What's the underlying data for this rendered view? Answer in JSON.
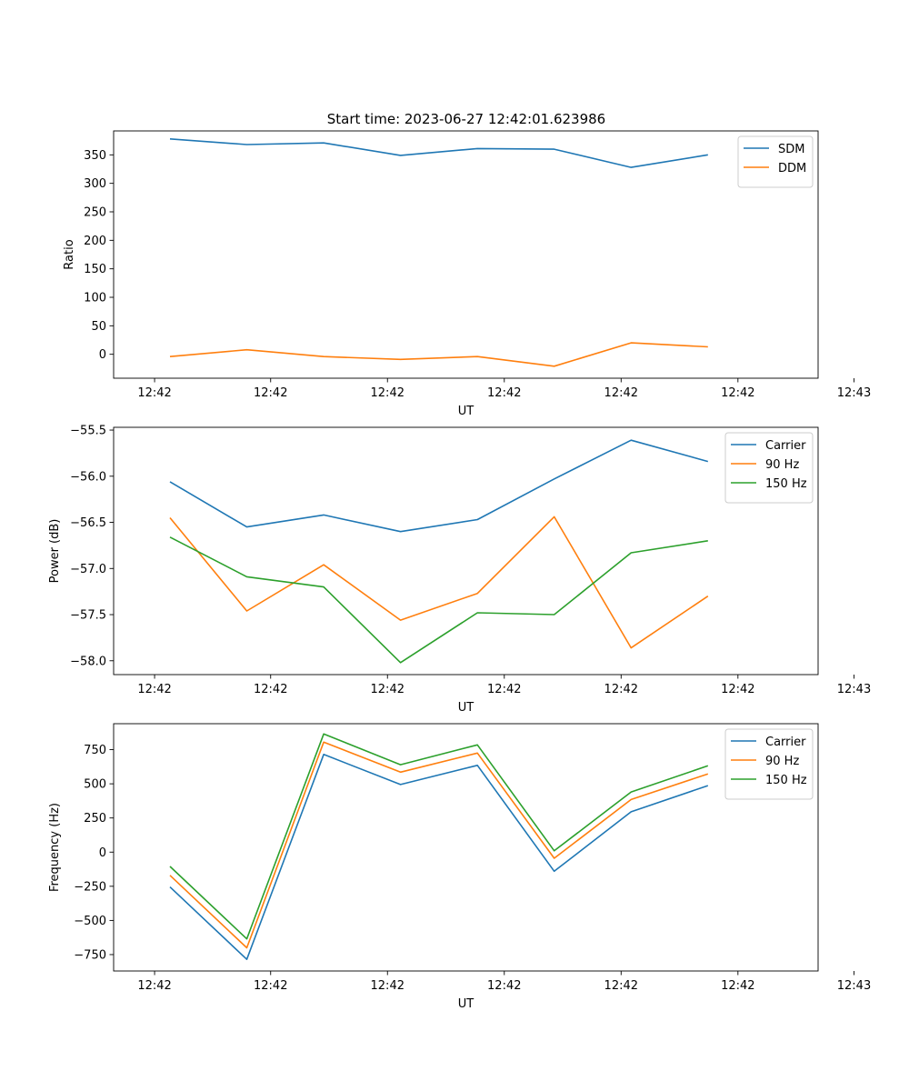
{
  "figure_title": "Start time: 2023-06-27 12:42:01.623986",
  "colors": {
    "blue": "#1f77b4",
    "orange": "#ff7f0e",
    "green": "#2ca02c"
  },
  "chart_data": [
    {
      "type": "line",
      "xlabel": "UT",
      "ylabel": "Ratio",
      "x": [
        1,
        2,
        3,
        4,
        5,
        6,
        7,
        8
      ],
      "x_tick_labels": [
        "12:42",
        "12:42",
        "12:42",
        "12:42",
        "12:42",
        "12:42",
        "12:43"
      ],
      "ylim": [
        -42,
        392
      ],
      "yticks": [
        0,
        50,
        100,
        150,
        200,
        250,
        300,
        350
      ],
      "legend_position": "upper-right",
      "grid": false,
      "series": [
        {
          "name": "SDM",
          "color": "#1f77b4",
          "values": [
            378,
            368,
            371,
            349,
            361,
            360,
            328,
            350
          ]
        },
        {
          "name": "DDM",
          "color": "#ff7f0e",
          "values": [
            -4,
            8,
            -4,
            -9,
            -4,
            -21,
            20,
            13
          ]
        }
      ]
    },
    {
      "type": "line",
      "xlabel": "UT",
      "ylabel": "Power (dB)",
      "x": [
        1,
        2,
        3,
        4,
        5,
        6,
        7,
        8
      ],
      "x_tick_labels": [
        "12:42",
        "12:42",
        "12:42",
        "12:42",
        "12:42",
        "12:42",
        "12:43"
      ],
      "ylim": [
        -58.15,
        -55.47
      ],
      "yticks": [
        -58.0,
        -57.5,
        -57.0,
        -56.5,
        -56.0,
        -55.5
      ],
      "ytick_labels": [
        "−58.0",
        "−57.5",
        "−57.0",
        "−56.5",
        "−56.0",
        "−55.5"
      ],
      "legend_position": "upper-right",
      "grid": false,
      "series": [
        {
          "name": "Carrier",
          "color": "#1f77b4",
          "values": [
            -56.06,
            -56.55,
            -56.42,
            -56.6,
            -56.47,
            -56.03,
            -55.61,
            -55.84
          ]
        },
        {
          "name": "90 Hz",
          "color": "#ff7f0e",
          "values": [
            -56.45,
            -57.46,
            -56.96,
            -57.56,
            -57.27,
            -56.44,
            -57.86,
            -57.3
          ]
        },
        {
          "name": "150 Hz",
          "color": "#2ca02c",
          "values": [
            -56.66,
            -57.09,
            -57.2,
            -58.02,
            -57.48,
            -57.5,
            -56.83,
            -56.7
          ]
        }
      ]
    },
    {
      "type": "line",
      "xlabel": "UT",
      "ylabel": "Frequency (Hz)",
      "x": [
        1,
        2,
        3,
        4,
        5,
        6,
        7,
        8
      ],
      "x_tick_labels": [
        "12:42",
        "12:42",
        "12:42",
        "12:42",
        "12:42",
        "12:42",
        "12:43"
      ],
      "ylim": [
        -870,
        940
      ],
      "yticks": [
        -750,
        -500,
        -250,
        0,
        250,
        500,
        750
      ],
      "ytick_labels": [
        "−750",
        "−500",
        "−250",
        "0",
        "250",
        "500",
        "750"
      ],
      "legend_position": "upper-right",
      "grid": false,
      "series": [
        {
          "name": "Carrier",
          "color": "#1f77b4",
          "values": [
            -255,
            -785,
            715,
            495,
            635,
            -140,
            295,
            487
          ]
        },
        {
          "name": "90 Hz",
          "color": "#ff7f0e",
          "values": [
            -170,
            -700,
            805,
            585,
            725,
            -45,
            385,
            573
          ]
        },
        {
          "name": "150 Hz",
          "color": "#2ca02c",
          "values": [
            -105,
            -635,
            865,
            640,
            785,
            10,
            440,
            632
          ]
        }
      ]
    }
  ]
}
